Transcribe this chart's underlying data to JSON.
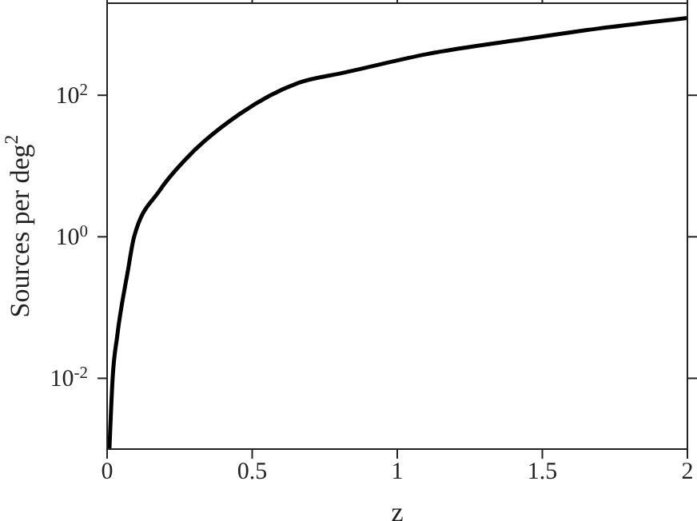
{
  "chart_data": {
    "type": "line",
    "xlabel": "z",
    "ylabel": "Sources per deg$^{2}$",
    "x": [
      0.008,
      0.019,
      0.035,
      0.071,
      0.093,
      0.181,
      0.275,
      0.456,
      0.66,
      0.82,
      1.1,
      1.46,
      1.65,
      2
    ],
    "series": [
      {
        "color": "#000000",
        "values": [
          0.001,
          0.01,
          0.04,
          0.32,
          1,
          4.5,
          13,
          54,
          150,
          210,
          380,
          640,
          830,
          1240
        ]
      }
    ],
    "log": "y",
    "xlim": [
      0,
      2
    ],
    "xticks": [
      0,
      0.5,
      1,
      1.5,
      2
    ],
    "ylim": [
      0.001,
      2000
    ],
    "yticks": [
      {
        "value": 0.01,
        "label": "10$^{-2}$"
      },
      {
        "value": 1,
        "label": "10$^{0}$"
      },
      {
        "value": 100,
        "label": "10$^{2}$"
      }
    ],
    "grid": false,
    "legend": false,
    "marker": "none",
    "line_style": "solid"
  }
}
